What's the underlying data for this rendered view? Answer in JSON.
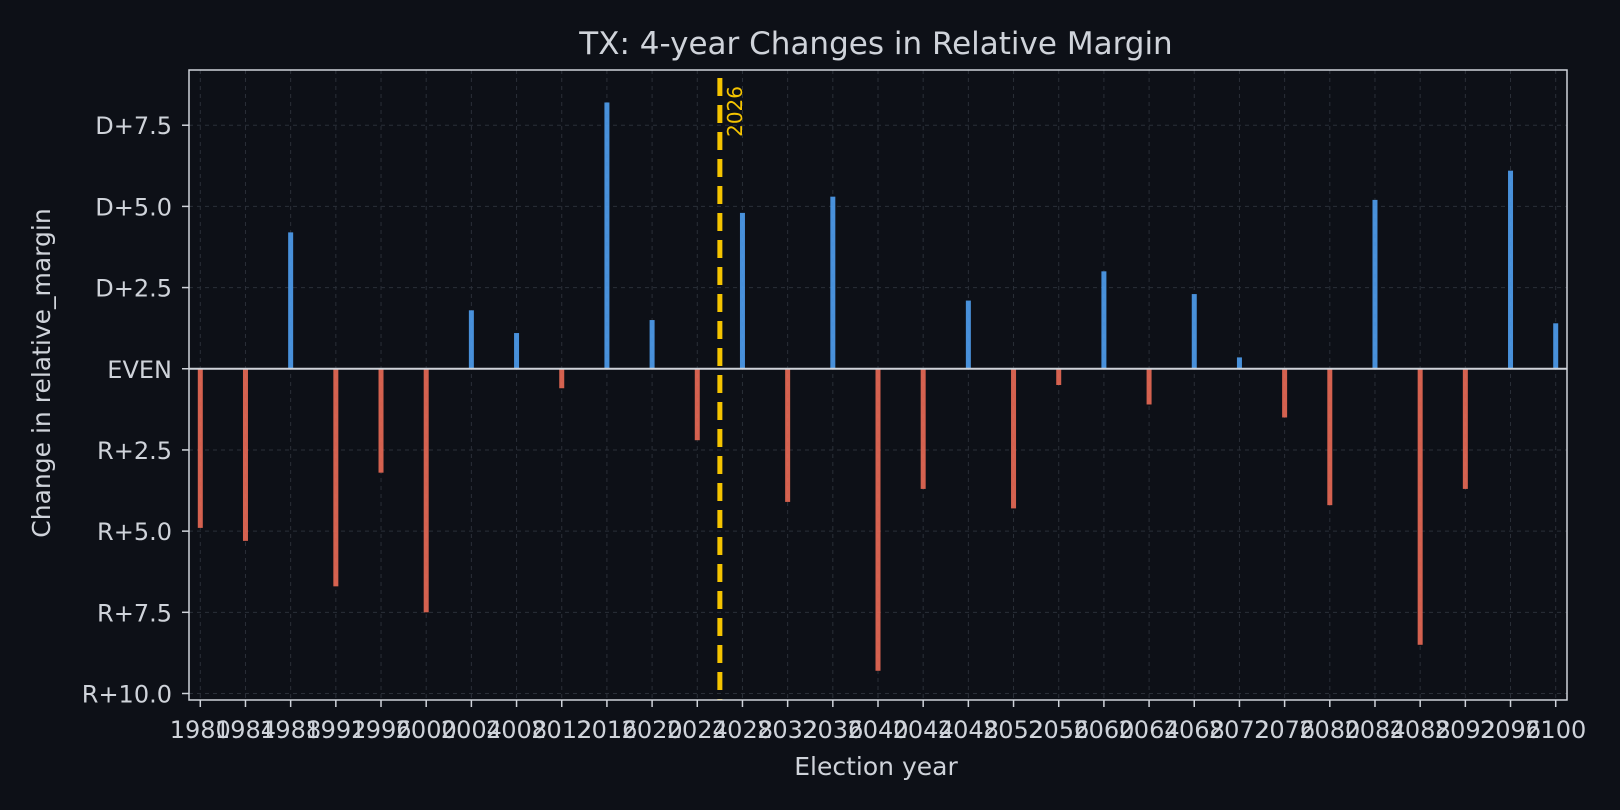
{
  "chart_data": {
    "type": "bar",
    "title": "TX: 4-year Changes in Relative Margin",
    "xlabel": "Election year",
    "ylabel": "Change in relative_margin",
    "xlim": [
      1979,
      2101
    ],
    "ylim": [
      -10.2,
      9.2
    ],
    "x_ticks": [
      1980,
      1984,
      1988,
      1992,
      1996,
      2000,
      2004,
      2008,
      2012,
      2016,
      2020,
      2024,
      2028,
      2032,
      2036,
      2040,
      2044,
      2048,
      2052,
      2056,
      2060,
      2064,
      2068,
      2072,
      2076,
      2080,
      2084,
      2088,
      2092,
      2096,
      2100
    ],
    "y_ticks": [
      {
        "value": 7.5,
        "label": "D+7.5"
      },
      {
        "value": 5.0,
        "label": "D+5.0"
      },
      {
        "value": 2.5,
        "label": "D+2.5"
      },
      {
        "value": 0,
        "label": "EVEN"
      },
      {
        "value": -2.5,
        "label": "R+2.5"
      },
      {
        "value": -5.0,
        "label": "R+5.0"
      },
      {
        "value": -7.5,
        "label": "R+7.5"
      },
      {
        "value": -10.0,
        "label": "R+10.0"
      }
    ],
    "grid": true,
    "marker": {
      "x": 2026,
      "label": "2026",
      "color": "#f5c400"
    },
    "colors": {
      "positive": "#4f9ef0",
      "negative": "#ea6a55",
      "zero_line": "#cfd3da",
      "frame": "#cfd3da"
    },
    "series": [
      {
        "x": [
          1980,
          1984,
          1988,
          1992,
          1996,
          2000,
          2004,
          2008,
          2012,
          2016,
          2020,
          2024,
          2028,
          2032,
          2036,
          2040,
          2044,
          2048,
          2052,
          2056,
          2060,
          2064,
          2068,
          2072,
          2076,
          2080,
          2084,
          2088,
          2092,
          2096,
          2100
        ],
        "values": [
          -4.9,
          -5.3,
          4.2,
          -6.7,
          -3.2,
          -7.5,
          1.8,
          1.1,
          -0.6,
          8.2,
          1.5,
          -2.2,
          4.8,
          -4.1,
          5.3,
          -9.3,
          -3.7,
          2.1,
          -4.3,
          -0.5,
          3.0,
          -1.1,
          2.3,
          0.35,
          -1.5,
          -4.2,
          5.2,
          -8.5,
          -3.7,
          6.1,
          1.4
        ]
      }
    ]
  }
}
